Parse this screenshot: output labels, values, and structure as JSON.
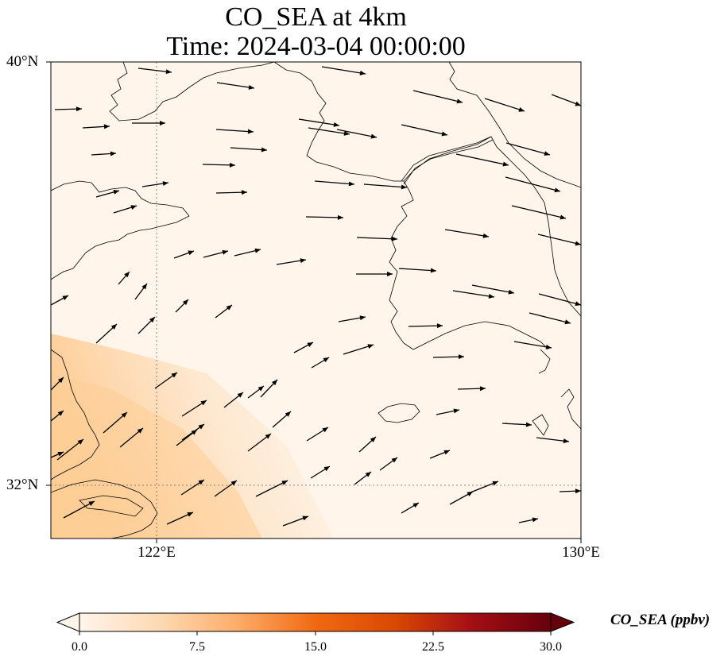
{
  "map": {
    "title_line1": "CO_SEA at 4km",
    "title_line2": "Time: 2024-03-04 00:00:00",
    "lat_labels": [
      "40°N",
      "32°N"
    ],
    "lon_labels": [
      "122°E",
      "130°E"
    ],
    "extent": {
      "lon_min": 120,
      "lon_max": 130,
      "lat_min": 31,
      "lat_max": 40
    },
    "gridlines": {
      "lons": [
        122,
        130
      ],
      "lats": [
        32,
        40
      ]
    },
    "field_color_low": "#fff5eb",
    "field_color_high": "#fdc98d"
  },
  "colorbar": {
    "label": "CO_SEA (ppbv)",
    "ticks": [
      "0.0",
      "7.5",
      "15.0",
      "22.5",
      "30.0"
    ],
    "vmin": 0,
    "vmax": 30,
    "colors": [
      "#fff5eb",
      "#fdd9b4",
      "#fdae6b",
      "#f16913",
      "#d94801",
      "#a50f15",
      "#67000d"
    ]
  }
}
